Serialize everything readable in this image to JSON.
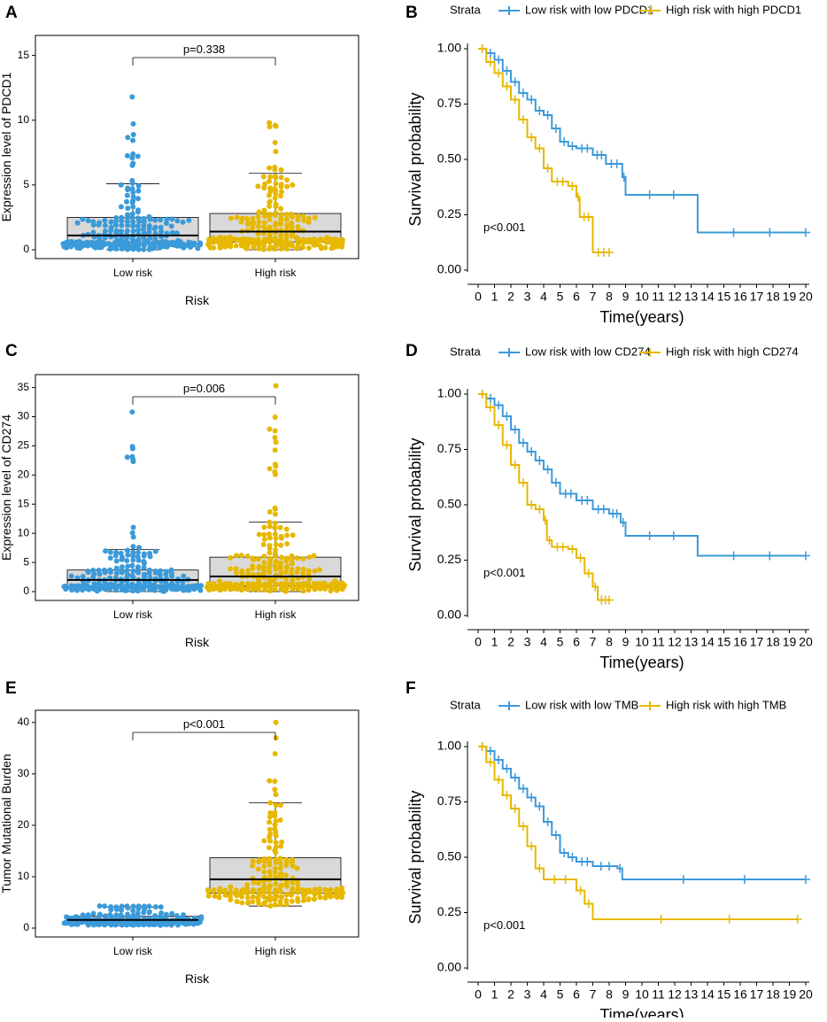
{
  "colors": {
    "low": "#3B9AD9",
    "high": "#E6B800",
    "box": "#D9D9D9"
  },
  "chart_data": [
    {
      "id": "A",
      "type": "beeswarm-box",
      "ylabel": "Expression level of PDCD1",
      "xlabel": "Risk",
      "categories": [
        "Low risk",
        "High risk"
      ],
      "ylim": [
        0,
        16
      ],
      "yticks": [
        0,
        5,
        10,
        15
      ],
      "pvalue": "p=0.338",
      "groups": [
        {
          "name": "Low risk",
          "box": {
            "min": 0,
            "q1": 0.45,
            "median": 1.1,
            "q3": 2.5,
            "max": 5.1
          },
          "n": 260,
          "ymax_point": 11.8
        },
        {
          "name": "High risk",
          "box": {
            "min": 0,
            "q1": 0.6,
            "median": 1.4,
            "q3": 2.8,
            "max": 5.9
          },
          "n": 260,
          "ymax_point": 9.8
        }
      ]
    },
    {
      "id": "B",
      "type": "km",
      "legend_title": "Strata",
      "legend": [
        "Low risk with low PDCD1",
        "High risk with high PDCD1"
      ],
      "xlabel": "Time(years)",
      "ylabel": "Survival probability",
      "xlim": [
        0,
        20
      ],
      "ylim": [
        0,
        1
      ],
      "xticks": [
        0,
        1,
        2,
        3,
        4,
        5,
        6,
        7,
        8,
        9,
        10,
        11,
        12,
        13,
        14,
        15,
        16,
        17,
        18,
        19,
        20
      ],
      "yticks": [
        "0.00",
        "0.25",
        "0.50",
        "0.75",
        "1.00"
      ],
      "pvalue": "p<0.001",
      "series": [
        {
          "name": "Low risk with low PDCD1",
          "points": [
            [
              0,
              1
            ],
            [
              0.5,
              0.98
            ],
            [
              1,
              0.95
            ],
            [
              1.5,
              0.9
            ],
            [
              2,
              0.85
            ],
            [
              2.5,
              0.8
            ],
            [
              3,
              0.77
            ],
            [
              3.5,
              0.72
            ],
            [
              4,
              0.7
            ],
            [
              4.5,
              0.64
            ],
            [
              5,
              0.58
            ],
            [
              5.5,
              0.56
            ],
            [
              6,
              0.55
            ],
            [
              7,
              0.52
            ],
            [
              7.8,
              0.48
            ],
            [
              8.8,
              0.42
            ],
            [
              9,
              0.34
            ],
            [
              13.4,
              0.17
            ],
            [
              20,
              0.17
            ]
          ]
        },
        {
          "name": "High risk with high PDCD1",
          "points": [
            [
              0,
              1
            ],
            [
              0.5,
              0.94
            ],
            [
              1,
              0.89
            ],
            [
              1.5,
              0.83
            ],
            [
              2,
              0.77
            ],
            [
              2.5,
              0.68
            ],
            [
              3,
              0.6
            ],
            [
              3.5,
              0.55
            ],
            [
              4,
              0.46
            ],
            [
              4.5,
              0.4
            ],
            [
              5.5,
              0.38
            ],
            [
              6,
              0.33
            ],
            [
              6.2,
              0.24
            ],
            [
              7,
              0.08
            ],
            [
              8,
              0.08
            ]
          ]
        }
      ]
    },
    {
      "id": "C",
      "type": "beeswarm-box",
      "ylabel": "Expression level of CD274",
      "xlabel": "Risk",
      "categories": [
        "Low risk",
        "High risk"
      ],
      "ylim": [
        0,
        36
      ],
      "yticks": [
        0,
        5,
        10,
        15,
        20,
        25,
        30,
        35
      ],
      "pvalue": "p=0.006",
      "groups": [
        {
          "name": "Low risk",
          "box": {
            "min": 0,
            "q1": 0.8,
            "median": 2.0,
            "q3": 3.7,
            "max": 7.2
          },
          "n": 260,
          "ymax_point": 30.8
        },
        {
          "name": "High risk",
          "box": {
            "min": 0,
            "q1": 1.0,
            "median": 2.6,
            "q3": 5.9,
            "max": 11.9
          },
          "n": 260,
          "ymax_point": 35.3
        }
      ]
    },
    {
      "id": "D",
      "type": "km",
      "legend_title": "Strata",
      "legend": [
        "Low risk with low CD274",
        "High risk with high CD274"
      ],
      "xlabel": "Time(years)",
      "ylabel": "Survival probability",
      "xlim": [
        0,
        20
      ],
      "ylim": [
        0,
        1
      ],
      "xticks": [
        0,
        1,
        2,
        3,
        4,
        5,
        6,
        7,
        8,
        9,
        10,
        11,
        12,
        13,
        14,
        15,
        16,
        17,
        18,
        19,
        20
      ],
      "yticks": [
        "0.00",
        "0.25",
        "0.50",
        "0.75",
        "1.00"
      ],
      "pvalue": "p<0.001",
      "series": [
        {
          "name": "Low risk with low CD274",
          "points": [
            [
              0,
              1
            ],
            [
              0.5,
              0.98
            ],
            [
              1,
              0.95
            ],
            [
              1.5,
              0.9
            ],
            [
              2,
              0.84
            ],
            [
              2.5,
              0.78
            ],
            [
              3,
              0.74
            ],
            [
              3.5,
              0.7
            ],
            [
              4,
              0.66
            ],
            [
              4.5,
              0.6
            ],
            [
              5,
              0.55
            ],
            [
              6,
              0.52
            ],
            [
              7,
              0.48
            ],
            [
              8,
              0.46
            ],
            [
              8.7,
              0.42
            ],
            [
              9,
              0.36
            ],
            [
              13.4,
              0.27
            ],
            [
              20,
              0.27
            ]
          ]
        },
        {
          "name": "High risk with high CD274",
          "points": [
            [
              0,
              1
            ],
            [
              0.5,
              0.94
            ],
            [
              1,
              0.86
            ],
            [
              1.5,
              0.77
            ],
            [
              2,
              0.68
            ],
            [
              2.5,
              0.6
            ],
            [
              3,
              0.5
            ],
            [
              3.5,
              0.48
            ],
            [
              4,
              0.43
            ],
            [
              4.2,
              0.34
            ],
            [
              4.5,
              0.31
            ],
            [
              5.5,
              0.3
            ],
            [
              6,
              0.26
            ],
            [
              6.5,
              0.19
            ],
            [
              7,
              0.13
            ],
            [
              7.3,
              0.07
            ],
            [
              8,
              0.07
            ]
          ]
        }
      ]
    },
    {
      "id": "E",
      "type": "beeswarm-box",
      "ylabel": "Tumor  Mutational  Burden",
      "xlabel": "Risk",
      "categories": [
        "Low risk",
        "High risk"
      ],
      "ylim": [
        0,
        41
      ],
      "yticks": [
        0,
        10,
        20,
        30,
        40
      ],
      "pvalue": "p<0.001",
      "groups": [
        {
          "name": "Low risk",
          "box": {
            "min": 0.5,
            "q1": 1.0,
            "median": 1.6,
            "q3": 2.3,
            "max": 4.1
          },
          "n": 220,
          "ymax_point": 4.3
        },
        {
          "name": "High risk",
          "box": {
            "min": 4.3,
            "q1": 6.8,
            "median": 9.5,
            "q3": 13.7,
            "max": 24.4
          },
          "n": 200,
          "ymax_point": 40
        }
      ]
    },
    {
      "id": "F",
      "type": "km",
      "legend_title": "Strata",
      "legend": [
        "Low risk with low TMB",
        "High risk with high TMB"
      ],
      "xlabel": "Time(years)",
      "ylabel": "Survival probability",
      "xlim": [
        0,
        20
      ],
      "ylim": [
        0,
        1
      ],
      "xticks": [
        0,
        1,
        2,
        3,
        4,
        5,
        6,
        7,
        8,
        9,
        10,
        11,
        12,
        13,
        14,
        15,
        16,
        17,
        18,
        19,
        20
      ],
      "yticks": [
        "0.00",
        "0.25",
        "0.50",
        "0.75",
        "1.00"
      ],
      "pvalue": "p<0.001",
      "series": [
        {
          "name": "Low risk with low TMB",
          "points": [
            [
              0,
              1
            ],
            [
              0.5,
              0.98
            ],
            [
              1,
              0.94
            ],
            [
              1.5,
              0.9
            ],
            [
              2,
              0.86
            ],
            [
              2.5,
              0.81
            ],
            [
              3,
              0.77
            ],
            [
              3.5,
              0.73
            ],
            [
              4,
              0.66
            ],
            [
              4.5,
              0.6
            ],
            [
              5,
              0.52
            ],
            [
              5.5,
              0.5
            ],
            [
              6,
              0.48
            ],
            [
              7,
              0.46
            ],
            [
              8.5,
              0.45
            ],
            [
              8.8,
              0.4
            ],
            [
              20,
              0.4
            ]
          ]
        },
        {
          "name": "High risk with high TMB",
          "points": [
            [
              0,
              1
            ],
            [
              0.5,
              0.93
            ],
            [
              1,
              0.85
            ],
            [
              1.5,
              0.78
            ],
            [
              2,
              0.72
            ],
            [
              2.5,
              0.64
            ],
            [
              3,
              0.55
            ],
            [
              3.5,
              0.45
            ],
            [
              4,
              0.4
            ],
            [
              6,
              0.35
            ],
            [
              6.5,
              0.29
            ],
            [
              7,
              0.22
            ],
            [
              19.5,
              0.22
            ]
          ]
        }
      ]
    }
  ]
}
